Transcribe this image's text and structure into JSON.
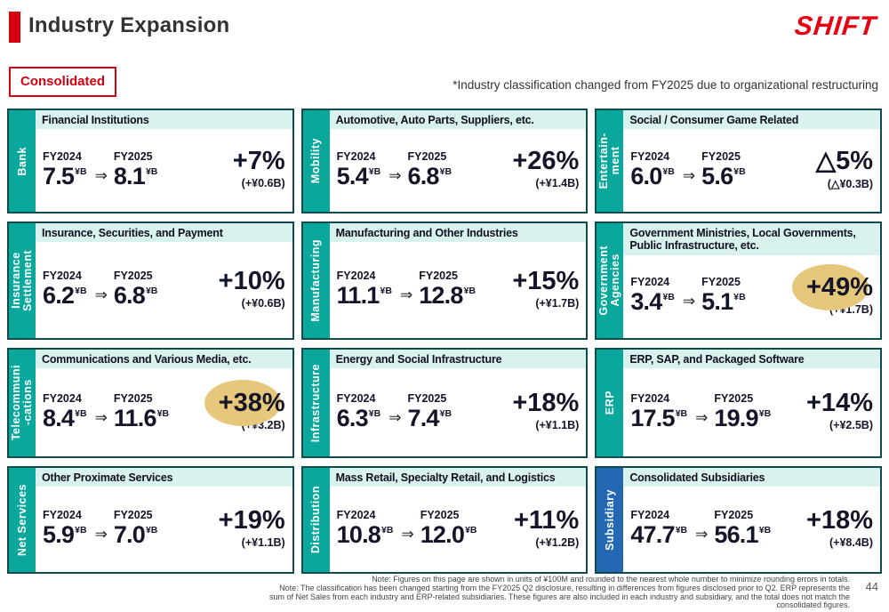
{
  "header": {
    "title": "Industry Expansion",
    "logo": "SHIFT",
    "badge": "Consolidated",
    "note": "*Industry classification changed from FY2025 due to organizational restructuring"
  },
  "labels": {
    "fy2024": "FY2024",
    "fy2025": "FY2025",
    "arrow": "⇒",
    "unit": "¥B"
  },
  "cards": [
    {
      "industry": "Bank",
      "category": "Financial Institutions",
      "fy2024": "7.5",
      "fy2025": "8.1",
      "change": "+7%",
      "delta": "(+¥0.6B)",
      "accent": "teal",
      "highlight": false
    },
    {
      "industry": "Mobility",
      "category": "Automotive, Auto Parts, Suppliers, etc.",
      "fy2024": "5.4",
      "fy2025": "6.8",
      "change": "+26%",
      "delta": "(+¥1.4B)",
      "accent": "teal",
      "highlight": false
    },
    {
      "industry": "Entertain-\nment",
      "category": "Social / Consumer Game Related",
      "fy2024": "6.0",
      "fy2025": "5.6",
      "change": "△5%",
      "delta": "(△¥0.3B)",
      "accent": "teal",
      "highlight": false
    },
    {
      "industry": "Insurance\nSettlement",
      "category": "Insurance, Securities, and Payment",
      "fy2024": "6.2",
      "fy2025": "6.8",
      "change": "+10%",
      "delta": "(+¥0.6B)",
      "accent": "teal",
      "highlight": false
    },
    {
      "industry": "Manufacturing",
      "category": "Manufacturing and Other Industries",
      "fy2024": "11.1",
      "fy2025": "12.8",
      "change": "+15%",
      "delta": "(+¥1.7B)",
      "accent": "teal",
      "highlight": false
    },
    {
      "industry": "Government\nAgencies",
      "category": "Government Ministries, Local Governments, Public Infrastructure, etc.",
      "fy2024": "3.4",
      "fy2025": "5.1",
      "change": "+49%",
      "delta": "(+¥1.7B)",
      "accent": "teal",
      "highlight": true
    },
    {
      "industry": "Telecommuni\n-cations",
      "category": "Communications and Various Media, etc.",
      "fy2024": "8.4",
      "fy2025": "11.6",
      "change": "+38%",
      "delta": "(+¥3.2B)",
      "accent": "teal",
      "highlight": true
    },
    {
      "industry": "Infrastructure",
      "category": "Energy and Social Infrastructure",
      "fy2024": "6.3",
      "fy2025": "7.4",
      "change": "+18%",
      "delta": "(+¥1.1B)",
      "accent": "teal",
      "highlight": false
    },
    {
      "industry": "ERP",
      "category": "ERP, SAP, and Packaged Software",
      "fy2024": "17.5",
      "fy2025": "19.9",
      "change": "+14%",
      "delta": "(+¥2.5B)",
      "accent": "teal",
      "highlight": false
    },
    {
      "industry": "Net Services",
      "category": "Other Proximate Services",
      "fy2024": "5.9",
      "fy2025": "7.0",
      "change": "+19%",
      "delta": "(+¥1.1B)",
      "accent": "teal",
      "highlight": false
    },
    {
      "industry": "Distribution",
      "category": "Mass Retail, Specialty Retail, and Logistics",
      "fy2024": "10.8",
      "fy2025": "12.0",
      "change": "+11%",
      "delta": "(+¥1.2B)",
      "accent": "teal",
      "highlight": false
    },
    {
      "industry": "Subsidiary",
      "category": "Consolidated Subsidiaries",
      "fy2024": "47.7",
      "fy2025": "56.1",
      "change": "+18%",
      "delta": "(+¥8.4B)",
      "accent": "blue",
      "highlight": false
    }
  ],
  "footer": {
    "note1": "Note: Figures on this page are shown in units of ¥100M and rounded to the nearest whole number to minimize rounding errors in totals.",
    "note2": "Note: The classification has been changed starting from the FY2025 Q2 disclosure, resulting in differences from figures disclosed prior to Q2. ERP represents the sum of Net Sales from each industry and ERP-related subsidiaries. These figures are also included in each industry and subsidiary, and the total does not match the consolidated figures.",
    "page": "44"
  },
  "colors": {
    "accent_red": "#d7000f",
    "logo_red": "#e60012",
    "teal": "#0aa79d",
    "blue": "#2468b4",
    "header_mint": "#d9f2ee",
    "card_border": "#0d4b4d",
    "highlight": "#e6c77c",
    "text_dark": "#15152a"
  }
}
